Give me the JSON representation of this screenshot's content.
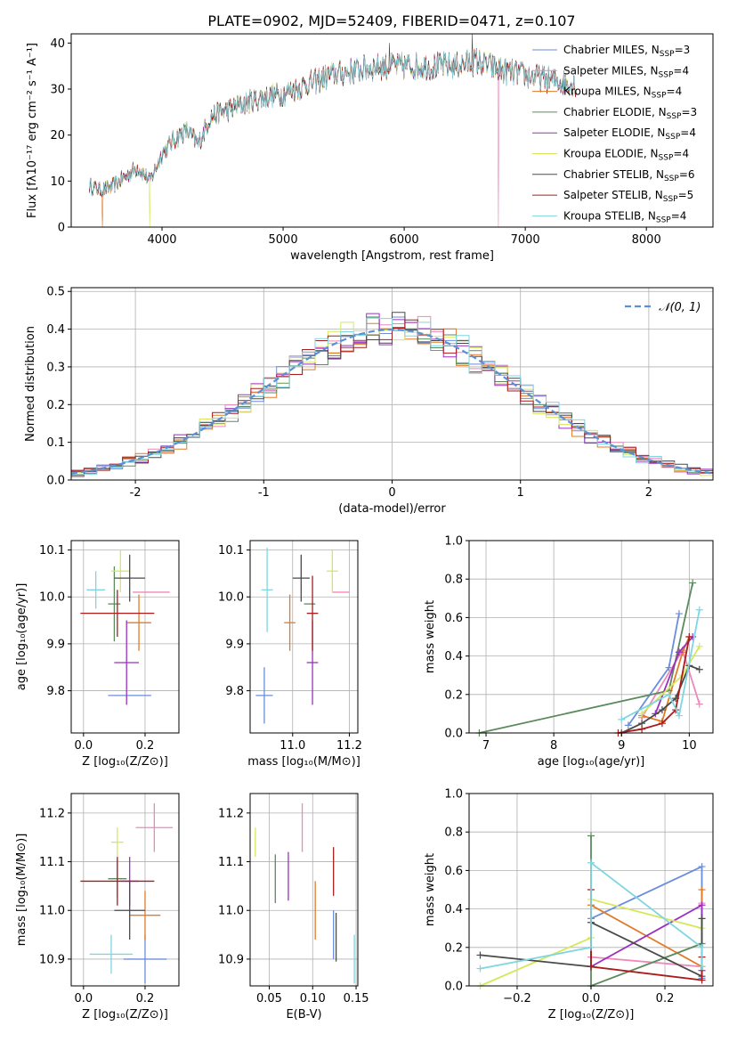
{
  "figure": {
    "title": "PLATE=0902, MJD=52409, FIBERID=0471, z=0.107"
  },
  "colors": {
    "chabrier_miles": "#6a8ddc",
    "salpeter_miles": "#ee88bb",
    "kroupa_miles": "#e07b2a",
    "chabrier_elodie": "#5c8a5c",
    "salpeter_elodie": "#9b30c0",
    "kroupa_elodie": "#d6e85a",
    "chabrier_stelib": "#4a4a4a",
    "salpeter_stelib": "#a81c1c",
    "kroupa_stelib": "#7fd6e0",
    "normal": "#5b8fd6",
    "grid": "#b0b0b0"
  },
  "chart_data": [
    {
      "id": "spectrum",
      "type": "line",
      "xlabel": "wavelength [Angstrom, rest frame]",
      "ylabel": "Flux [fλ10⁻¹⁷ erg cm⁻² s⁻¹ A⁻¹]",
      "xlim": [
        3250,
        8550
      ],
      "ylim": [
        0,
        42
      ],
      "xticks": [
        4000,
        5000,
        6000,
        7000,
        8000
      ],
      "yticks": [
        0,
        10,
        20,
        30,
        40
      ],
      "continuum_profile": {
        "x": [
          3400,
          3500,
          3600,
          3700,
          3800,
          3900,
          4000,
          4100,
          4200,
          4300,
          4400,
          4600,
          4800,
          5000,
          5200,
          5400,
          5600,
          5800,
          6000,
          6200,
          6400,
          6600,
          6800,
          7000,
          7200,
          7400
        ],
        "y": [
          9,
          8,
          9,
          11,
          13,
          10,
          16,
          19,
          21,
          18,
          24,
          26,
          28,
          29,
          31,
          33,
          34,
          35,
          35,
          35,
          35,
          36,
          34,
          33,
          32,
          31
        ]
      },
      "series": [
        {
          "name": "Chabrier MILES, N",
          "sub": "SSP",
          "tail": "=3",
          "color_key": "chabrier_miles"
        },
        {
          "name": "Salpeter MILES, N",
          "sub": "SSP",
          "tail": "=4",
          "color_key": "salpeter_miles"
        },
        {
          "name": "Kroupa MILES, N",
          "sub": "SSP",
          "tail": "=4",
          "color_key": "kroupa_miles"
        },
        {
          "name": "Chabrier ELODIE, N",
          "sub": "SSP",
          "tail": "=3",
          "color_key": "chabrier_elodie"
        },
        {
          "name": "Salpeter ELODIE, N",
          "sub": "SSP",
          "tail": "=4",
          "color_key": "salpeter_elodie"
        },
        {
          "name": "Kroupa ELODIE, N",
          "sub": "SSP",
          "tail": "=4",
          "color_key": "kroupa_elodie"
        },
        {
          "name": "Chabrier STELIB, N",
          "sub": "SSP",
          "tail": "=6",
          "color_key": "chabrier_stelib"
        },
        {
          "name": "Salpeter STELIB, N",
          "sub": "SSP",
          "tail": "=5",
          "color_key": "salpeter_stelib"
        },
        {
          "name": "Kroupa STELIB, N",
          "sub": "SSP",
          "tail": "=4",
          "color_key": "kroupa_stelib"
        }
      ],
      "legend": "top-right",
      "grid": false
    },
    {
      "id": "residuals",
      "type": "histogram",
      "xlabel": "(data-model)/error",
      "ylabel": "Normed distribution",
      "xlim": [
        -2.5,
        2.5
      ],
      "ylim": [
        0,
        0.51
      ],
      "xticks": [
        -2,
        -1,
        0,
        1,
        2
      ],
      "yticks": [
        0.0,
        0.1,
        0.2,
        0.3,
        0.4,
        0.5
      ],
      "ytick_labels": [
        "0.0",
        "0.1",
        "0.2",
        "0.3",
        "0.4",
        "0.5"
      ],
      "bin_width": 0.1,
      "normal_label": "𝒩(0, 1)",
      "legend": "top-right",
      "grid": true
    },
    {
      "id": "age_vs_Z",
      "type": "errorbar",
      "xlabel": "Z [log₁₀(Z/Z⊙)]",
      "ylabel": "age  [log₁₀(age/yr)]",
      "xlim": [
        -0.04,
        0.31
      ],
      "ylim": [
        9.71,
        10.12
      ],
      "xticks": [
        0.0,
        0.2
      ],
      "xtick_labels": [
        "0.0",
        "0.2"
      ],
      "yticks": [
        9.8,
        9.9,
        10.0,
        10.1
      ],
      "ytick_labels": [
        "9.8",
        "9.9",
        "10.0",
        "10.1"
      ],
      "points": [
        {
          "x": 0.15,
          "y": 9.79,
          "xerr": 0.07,
          "yerr": 0.0,
          "color_key": "chabrier_miles"
        },
        {
          "x": 0.22,
          "y": 10.01,
          "xerr": 0.06,
          "yerr": 0.0,
          "color_key": "salpeter_miles"
        },
        {
          "x": 0.18,
          "y": 9.945,
          "xerr": 0.04,
          "yerr": 0.06,
          "color_key": "kroupa_miles"
        },
        {
          "x": 0.1,
          "y": 9.985,
          "xerr": 0.02,
          "yerr": 0.08,
          "color_key": "chabrier_elodie"
        },
        {
          "x": 0.14,
          "y": 9.86,
          "xerr": 0.04,
          "yerr": 0.09,
          "color_key": "salpeter_elodie"
        },
        {
          "x": 0.12,
          "y": 10.055,
          "xerr": 0.03,
          "yerr": 0.045,
          "color_key": "kroupa_elodie"
        },
        {
          "x": 0.15,
          "y": 10.04,
          "xerr": 0.05,
          "yerr": 0.05,
          "color_key": "chabrier_stelib"
        },
        {
          "x": 0.11,
          "y": 9.965,
          "xerr": 0.12,
          "yerr": 0.05,
          "color_key": "salpeter_stelib"
        },
        {
          "x": 0.04,
          "y": 10.015,
          "xerr": 0.03,
          "yerr": 0.04,
          "color_key": "kroupa_stelib"
        }
      ],
      "grid": true
    },
    {
      "id": "age_vs_mass",
      "type": "errorbar",
      "xlabel": "mass [log₁₀(M/M⊙)]",
      "ylabel": "",
      "xlim": [
        10.85,
        11.23
      ],
      "ylim": [
        9.71,
        10.12
      ],
      "xticks": [
        11.0,
        11.2
      ],
      "xtick_labels": [
        "11.0",
        "11.2"
      ],
      "yticks": [
        9.8,
        9.9,
        10.0,
        10.1
      ],
      "ytick_labels": [
        "9.8",
        "9.9",
        "10.0",
        "10.1"
      ],
      "points": [
        {
          "x": 10.9,
          "y": 9.79,
          "xerr": 0.03,
          "yerr": 0.06,
          "color_key": "chabrier_miles"
        },
        {
          "x": 11.17,
          "y": 10.01,
          "xerr": 0.03,
          "yerr": 0.0,
          "color_key": "salpeter_miles"
        },
        {
          "x": 10.99,
          "y": 9.945,
          "xerr": 0.02,
          "yerr": 0.06,
          "color_key": "kroupa_miles"
        },
        {
          "x": 11.06,
          "y": 9.985,
          "xerr": 0.02,
          "yerr": 0.0,
          "color_key": "chabrier_elodie"
        },
        {
          "x": 11.07,
          "y": 9.86,
          "xerr": 0.02,
          "yerr": 0.09,
          "color_key": "salpeter_elodie"
        },
        {
          "x": 11.14,
          "y": 10.055,
          "xerr": 0.02,
          "yerr": 0.045,
          "color_key": "kroupa_elodie"
        },
        {
          "x": 11.03,
          "y": 10.04,
          "xerr": 0.03,
          "yerr": 0.05,
          "color_key": "chabrier_stelib"
        },
        {
          "x": 11.07,
          "y": 9.965,
          "xerr": 0.02,
          "yerr": 0.08,
          "color_key": "salpeter_stelib"
        },
        {
          "x": 10.91,
          "y": 10.015,
          "xerr": 0.02,
          "yerr": 0.09,
          "color_key": "kroupa_stelib"
        }
      ],
      "grid": true
    },
    {
      "id": "weight_vs_age",
      "type": "line",
      "xlabel": "age  [log₁₀(age/yr)]",
      "ylabel": "mass weight",
      "xlim": [
        6.75,
        10.35
      ],
      "ylim": [
        0,
        1.0
      ],
      "xticks": [
        7,
        8,
        9,
        10
      ],
      "yticks": [
        0.0,
        0.2,
        0.4,
        0.6,
        0.8,
        1.0
      ],
      "ytick_labels": [
        "0.0",
        "0.2",
        "0.4",
        "0.6",
        "0.8",
        "1.0"
      ],
      "series": [
        {
          "color_key": "chabrier_miles",
          "x": [
            9.1,
            9.7,
            9.85
          ],
          "y": [
            0.04,
            0.34,
            0.62
          ]
        },
        {
          "color_key": "salpeter_miles",
          "x": [
            9.3,
            9.9,
            10.15
          ],
          "y": [
            0.08,
            0.43,
            0.15
          ]
        },
        {
          "color_key": "kroupa_miles",
          "x": [
            9.3,
            9.6,
            9.9,
            10.0
          ],
          "y": [
            0.09,
            0.06,
            0.42,
            0.5
          ]
        },
        {
          "color_key": "chabrier_elodie",
          "x": [
            6.9,
            9.7,
            10.05
          ],
          "y": [
            0.0,
            0.22,
            0.78
          ]
        },
        {
          "color_key": "salpeter_elodie",
          "x": [
            9.5,
            9.85,
            10.05
          ],
          "y": [
            0.1,
            0.42,
            0.5
          ]
        },
        {
          "color_key": "kroupa_elodie",
          "x": [
            9.3,
            9.9,
            10.15
          ],
          "y": [
            0.1,
            0.3,
            0.45
          ]
        },
        {
          "color_key": "chabrier_stelib",
          "x": [
            9.0,
            9.3,
            9.6,
            9.8,
            10.0,
            10.15
          ],
          "y": [
            0.0,
            0.05,
            0.12,
            0.18,
            0.35,
            0.33
          ]
        },
        {
          "color_key": "salpeter_stelib",
          "x": [
            8.95,
            9.3,
            9.6,
            9.8,
            10.0
          ],
          "y": [
            0.0,
            0.02,
            0.05,
            0.12,
            0.5
          ]
        },
        {
          "color_key": "kroupa_stelib",
          "x": [
            9.0,
            9.7,
            9.85,
            10.15
          ],
          "y": [
            0.07,
            0.2,
            0.09,
            0.64
          ]
        }
      ],
      "grid": true
    },
    {
      "id": "mass_vs_Z",
      "type": "errorbar",
      "xlabel": "Z [log₁₀(Z/Z⊙)]",
      "ylabel": "mass [log₁₀(M/M⊙)]",
      "xlim": [
        -0.04,
        0.31
      ],
      "ylim": [
        10.845,
        11.24
      ],
      "xticks": [
        0.0,
        0.2
      ],
      "xtick_labels": [
        "0.0",
        "0.2"
      ],
      "yticks": [
        10.9,
        11.0,
        11.1,
        11.2
      ],
      "ytick_labels": [
        "10.9",
        "11.0",
        "11.1",
        "11.2"
      ],
      "points": [
        {
          "x": 0.2,
          "y": 10.9,
          "xerr": 0.07,
          "yerr": 0.05,
          "color_key": "chabrier_miles"
        },
        {
          "x": 0.23,
          "y": 11.17,
          "xerr": 0.06,
          "yerr": 0.05,
          "color_key": "salpeter_miles"
        },
        {
          "x": 0.2,
          "y": 10.99,
          "xerr": 0.05,
          "yerr": 0.05,
          "color_key": "kroupa_miles"
        },
        {
          "x": 0.11,
          "y": 11.065,
          "xerr": 0.03,
          "yerr": 0.04,
          "color_key": "chabrier_elodie"
        },
        {
          "x": 0.15,
          "y": 11.06,
          "xerr": 0.03,
          "yerr": 0.05,
          "color_key": "salpeter_elodie"
        },
        {
          "x": 0.11,
          "y": 11.14,
          "xerr": 0.02,
          "yerr": 0.03,
          "color_key": "kroupa_elodie"
        },
        {
          "x": 0.15,
          "y": 11.0,
          "xerr": 0.05,
          "yerr": 0.06,
          "color_key": "chabrier_stelib"
        },
        {
          "x": 0.11,
          "y": 11.06,
          "xerr": 0.12,
          "yerr": 0.05,
          "color_key": "salpeter_stelib"
        },
        {
          "x": 0.09,
          "y": 10.91,
          "xerr": 0.07,
          "yerr": 0.04,
          "color_key": "kroupa_stelib"
        }
      ],
      "grid": true
    },
    {
      "id": "mass_vs_ebv",
      "type": "errorbar",
      "xlabel": "E(B-V)",
      "ylabel": "",
      "xlim": [
        0.028,
        0.152
      ],
      "ylim": [
        10.845,
        11.24
      ],
      "xticks": [
        0.05,
        0.1,
        0.15
      ],
      "xtick_labels": [
        "0.05",
        "0.10",
        "0.15"
      ],
      "yticks": [
        10.9,
        11.0,
        11.1,
        11.2
      ],
      "ytick_labels": [
        "10.9",
        "11.0",
        "11.1",
        "11.2"
      ],
      "points": [
        {
          "x": 0.124,
          "y": 10.95,
          "xerr": 0.0,
          "yerr": 0.05,
          "color_key": "chabrier_miles"
        },
        {
          "x": 0.088,
          "y": 11.17,
          "xerr": 0.0,
          "yerr": 0.05,
          "color_key": "salpeter_miles"
        },
        {
          "x": 0.103,
          "y": 11.0,
          "xerr": 0.0,
          "yerr": 0.06,
          "color_key": "kroupa_miles"
        },
        {
          "x": 0.057,
          "y": 11.065,
          "xerr": 0.0,
          "yerr": 0.05,
          "color_key": "chabrier_elodie"
        },
        {
          "x": 0.072,
          "y": 11.07,
          "xerr": 0.0,
          "yerr": 0.05,
          "color_key": "salpeter_elodie"
        },
        {
          "x": 0.034,
          "y": 11.14,
          "xerr": 0.0,
          "yerr": 0.03,
          "color_key": "kroupa_elodie"
        },
        {
          "x": 0.127,
          "y": 10.945,
          "xerr": 0.0,
          "yerr": 0.05,
          "color_key": "chabrier_stelib"
        },
        {
          "x": 0.124,
          "y": 11.08,
          "xerr": 0.0,
          "yerr": 0.05,
          "color_key": "salpeter_stelib"
        },
        {
          "x": 0.148,
          "y": 10.9,
          "xerr": 0.0,
          "yerr": 0.05,
          "color_key": "kroupa_stelib"
        }
      ],
      "grid": true
    },
    {
      "id": "weight_vs_Z",
      "type": "line",
      "xlabel": "Z [log₁₀(Z/Z⊙)]",
      "ylabel": "mass weight",
      "xlim": [
        -0.33,
        0.33
      ],
      "ylim": [
        0,
        1.0
      ],
      "xticks": [
        -0.2,
        0.0,
        0.2
      ],
      "xtick_labels": [
        "−0.2",
        "0.0",
        "0.2"
      ],
      "yticks": [
        0.0,
        0.2,
        0.4,
        0.6,
        0.8,
        1.0
      ],
      "ytick_labels": [
        "0.0",
        "0.2",
        "0.4",
        "0.6",
        "0.8",
        "1.0"
      ],
      "series": [
        {
          "color_key": "chabrier_miles",
          "x": [
            0.0,
            0.3,
            0.3
          ],
          "y": [
            0.35,
            0.62,
            0.04
          ]
        },
        {
          "color_key": "salpeter_miles",
          "x": [
            0.0,
            0.3,
            0.3
          ],
          "y": [
            0.15,
            0.1,
            0.43
          ]
        },
        {
          "color_key": "kroupa_miles",
          "x": [
            0.0,
            0.3,
            0.3
          ],
          "y": [
            0.42,
            0.1,
            0.5
          ]
        },
        {
          "color_key": "chabrier_elodie",
          "x": [
            0.0,
            0.0,
            0.3
          ],
          "y": [
            0.78,
            0.0,
            0.22
          ]
        },
        {
          "color_key": "salpeter_elodie",
          "x": [
            0.0,
            0.3,
            0.3
          ],
          "y": [
            0.1,
            0.42,
            0.08
          ]
        },
        {
          "color_key": "kroupa_elodie",
          "x": [
            -0.3,
            0.0,
            0.0,
            0.3
          ],
          "y": [
            0.0,
            0.25,
            0.45,
            0.3
          ]
        },
        {
          "color_key": "chabrier_stelib",
          "x": [
            -0.3,
            0.0,
            0.0,
            0.3,
            0.3
          ],
          "y": [
            0.16,
            0.1,
            0.33,
            0.05,
            0.35
          ]
        },
        {
          "color_key": "salpeter_stelib",
          "x": [
            0.0,
            0.0,
            0.3,
            0.3
          ],
          "y": [
            0.5,
            0.1,
            0.03,
            0.15
          ]
        },
        {
          "color_key": "kroupa_stelib",
          "x": [
            -0.3,
            0.0,
            0.0,
            0.3,
            0.3
          ],
          "y": [
            0.09,
            0.2,
            0.64,
            0.2,
            0.1
          ]
        }
      ],
      "grid": true
    }
  ]
}
